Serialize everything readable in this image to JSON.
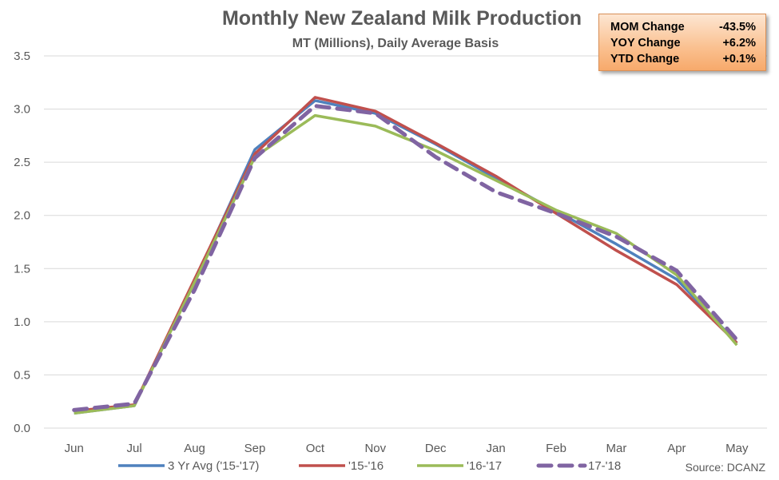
{
  "chart_data": {
    "type": "line",
    "title": "Monthly New Zealand Milk Production",
    "subtitle": "MT (Millions), Daily Average Basis",
    "categories": [
      "Jun",
      "Jul",
      "Aug",
      "Sep",
      "Oct",
      "Nov",
      "Dec",
      "Jan",
      "Feb",
      "Mar",
      "Apr",
      "May"
    ],
    "ylim": [
      0,
      3.5
    ],
    "yticks": [
      "0.0",
      "0.5",
      "1.0",
      "1.5",
      "2.0",
      "2.5",
      "3.0",
      "3.5"
    ],
    "grid": true,
    "legend_position": "bottom",
    "series": [
      {
        "name": "3 Yr Avg ('15-'17)",
        "color": "#4f81bd",
        "dashed": false,
        "values": [
          0.14,
          0.21,
          1.38,
          2.62,
          3.08,
          2.96,
          2.67,
          2.35,
          2.04,
          1.73,
          1.4,
          0.8
        ]
      },
      {
        "name": "'15-'16",
        "color": "#c0504d",
        "dashed": false,
        "values": [
          0.16,
          0.22,
          1.4,
          2.58,
          3.11,
          2.98,
          2.68,
          2.37,
          2.02,
          1.67,
          1.35,
          0.8
        ]
      },
      {
        "name": "'16-'17",
        "color": "#9bbb59",
        "dashed": false,
        "values": [
          0.14,
          0.21,
          1.37,
          2.55,
          2.94,
          2.84,
          2.61,
          2.33,
          2.05,
          1.83,
          1.44,
          0.78
        ]
      },
      {
        "name": "17-'18",
        "color": "#8064a2",
        "dashed": true,
        "values": [
          0.17,
          0.23,
          1.3,
          2.54,
          3.03,
          2.96,
          2.55,
          2.22,
          2.02,
          1.8,
          1.48,
          0.83
        ]
      }
    ]
  },
  "stats": [
    {
      "label": "MOM Change",
      "value": "-43.5%"
    },
    {
      "label": "YOY Change",
      "value": "+6.2%"
    },
    {
      "label": "YTD Change",
      "value": "+0.1%"
    }
  ],
  "source": "Source: DCANZ"
}
